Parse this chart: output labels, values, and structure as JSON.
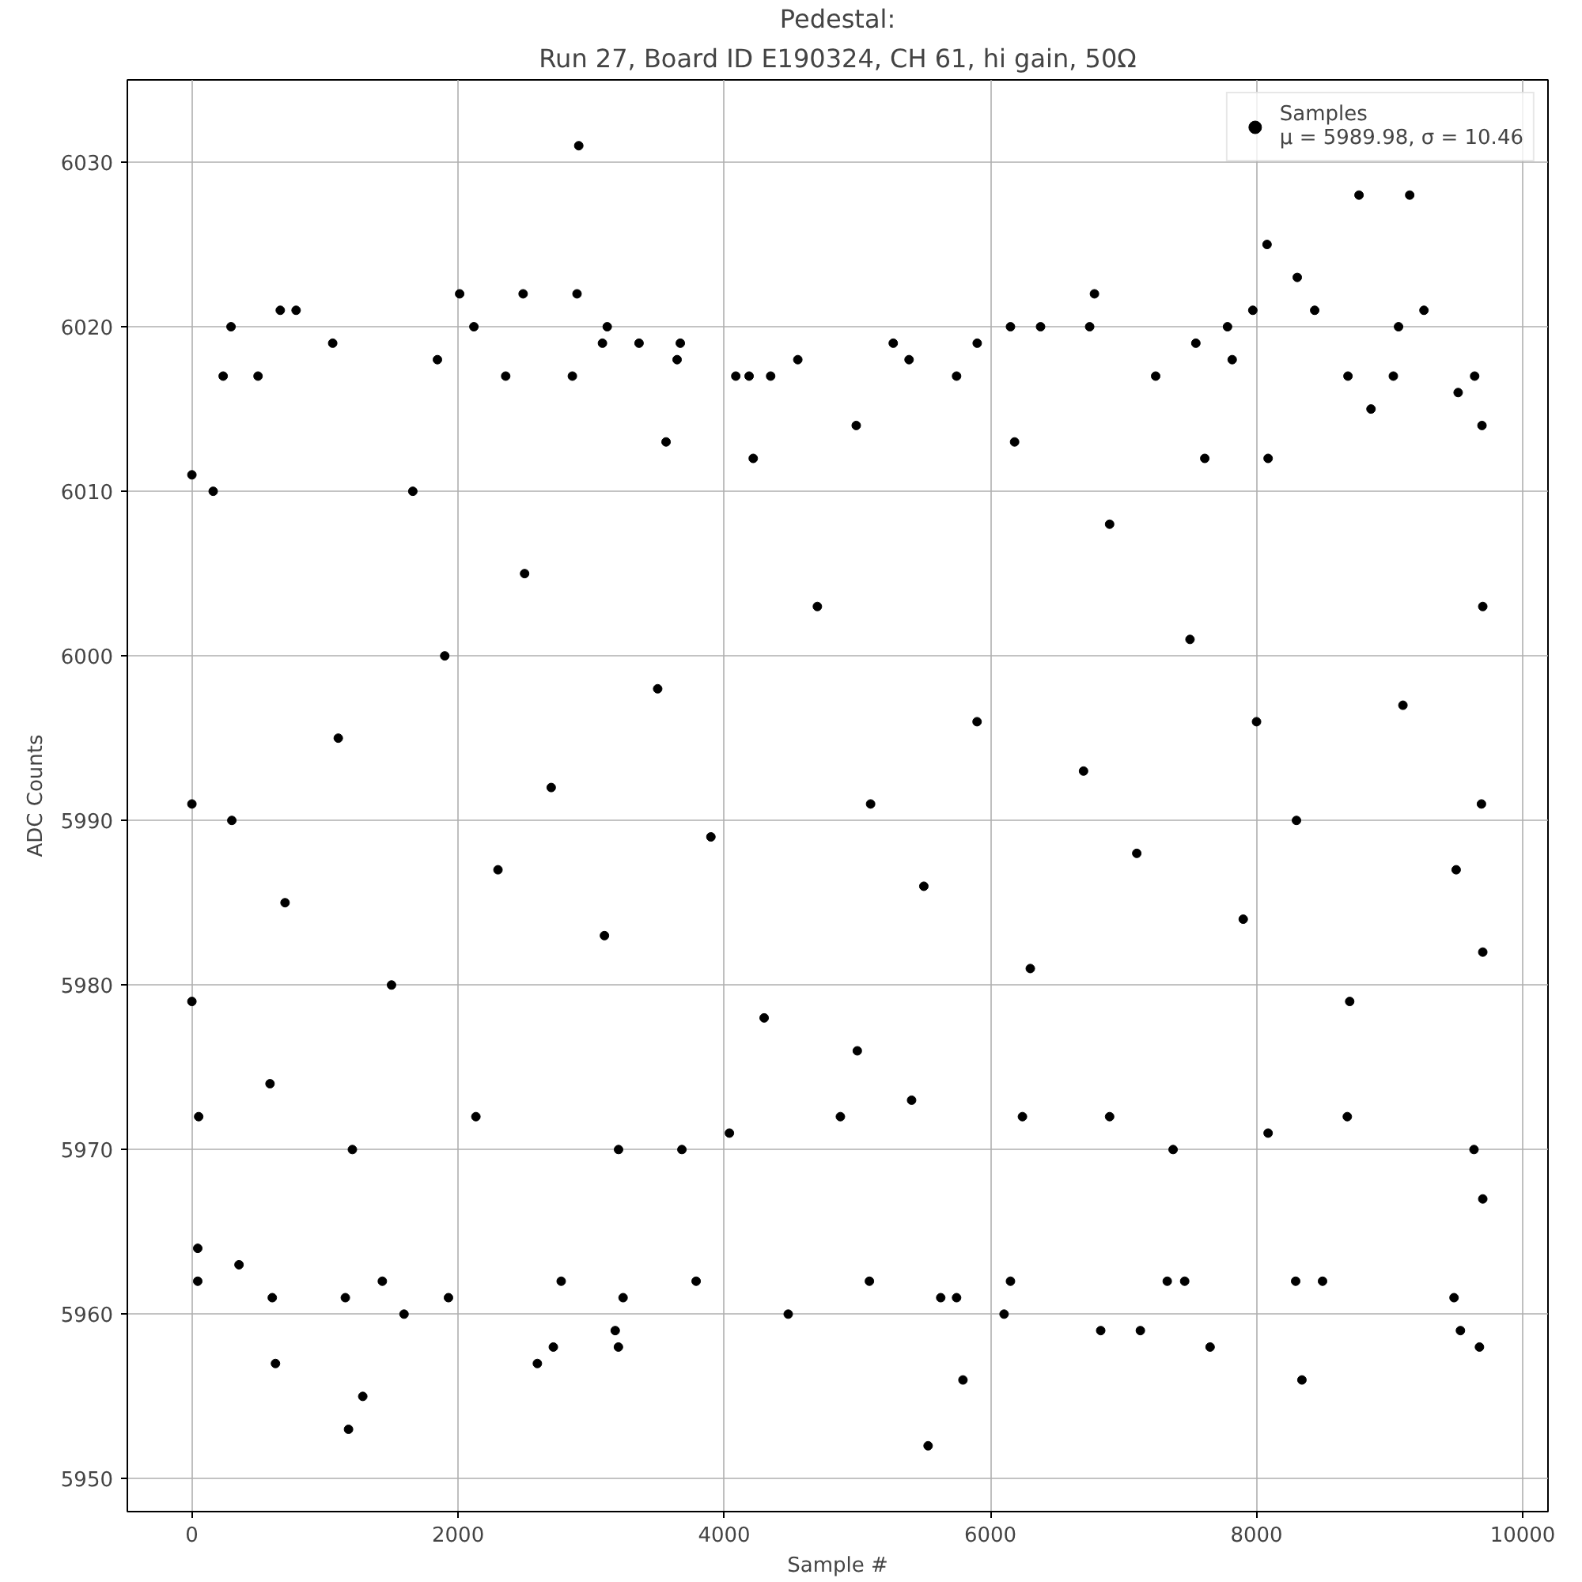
{
  "chart_data": {
    "type": "scatter",
    "title": "Pedestal:",
    "subtitle": "Run 27, Board ID E190324, CH 61, hi gain, 50Ω",
    "xlabel": "Sample #",
    "ylabel": "ADC Counts",
    "xlim": [
      -485,
      10190
    ],
    "ylim": [
      5948,
      6035
    ],
    "xticks": [
      0,
      2000,
      4000,
      6000,
      8000,
      10000
    ],
    "yticks": [
      5950,
      5960,
      5970,
      5980,
      5990,
      6000,
      6010,
      6020,
      6030
    ],
    "grid": true,
    "legend": "top right",
    "marker": "circle",
    "series": [
      {
        "name": "Samples\nμ = 5989.98, σ = 10.46",
        "color": "#000000",
        "x": [
          294,
          664,
          783,
          1058,
          235,
          497,
          2012,
          2119,
          2489,
          2907,
          2894,
          3121,
          3085,
          3360,
          3670,
          3646,
          1845,
          4553,
          4087,
          4187,
          2358,
          2859,
          8770,
          9151,
          8079,
          8306,
          8437,
          7972,
          9258,
          9067,
          7782,
          6782,
          6746,
          6151,
          6377,
          5270,
          5901,
          7544,
          9639,
          8687,
          9028,
          7242,
          5746,
          7817,
          5389,
          628,
          1177,
          1284,
          1594,
          2596,
          2716,
          3181,
          3205,
          4481,
          604,
          1153,
          1928,
          3240,
          44,
          44,
          354,
          1431,
          2775,
          3789,
          5532,
          5794,
          8341,
          6103,
          6829,
          7127,
          7651,
          9532,
          9675,
          9484,
          5091,
          5627,
          5746,
          7329,
          7460,
          8294,
          8496,
          6151,
          0,
          160,
          1660,
          3563,
          4218,
          4349,
          4992,
          6182,
          6896,
          7611,
          8087,
          8860,
          9515,
          9694,
          51,
          587,
          1206,
          2134,
          3206,
          3682,
          4039,
          4873,
          5408,
          6241,
          6896,
          7373,
          8087,
          8682,
          9634,
          9700,
          300,
          700,
          1100,
          1500,
          1900,
          2300,
          2700,
          3100,
          3500,
          3900,
          4300,
          4700,
          5100,
          5500,
          5900,
          6300,
          6700,
          7100,
          7500,
          7900,
          8300,
          8700,
          9100,
          9500,
          9690,
          0,
          0,
          9700,
          9700,
          5000,
          2500,
          8000
        ],
        "values": [
          6020,
          6021,
          6021,
          6019,
          6017,
          6017,
          6022,
          6020,
          6022,
          6031,
          6022,
          6020,
          6019,
          6019,
          6019,
          6018,
          6018,
          6018,
          6017,
          6017,
          6017,
          6017,
          6028,
          6028,
          6025,
          6023,
          6021,
          6021,
          6021,
          6020,
          6020,
          6022,
          6020,
          6020,
          6020,
          6019,
          6019,
          6019,
          6017,
          6017,
          6017,
          6017,
          6017,
          6018,
          6018,
          5957,
          5953,
          5955,
          5960,
          5957,
          5958,
          5959,
          5958,
          5960,
          5961,
          5961,
          5961,
          5961,
          5962,
          5964,
          5963,
          5962,
          5962,
          5962,
          5952,
          5956,
          5956,
          5960,
          5959,
          5959,
          5958,
          5959,
          5958,
          5961,
          5962,
          5961,
          5961,
          5962,
          5962,
          5962,
          5962,
          5962,
          6011,
          6010,
          6010,
          6013,
          6012,
          6017,
          6014,
          6013,
          6008,
          6012,
          6012,
          6015,
          6016,
          6014,
          5972,
          5974,
          5970,
          5972,
          5970,
          5970,
          5971,
          5972,
          5973,
          5972,
          5972,
          5970,
          5971,
          5972,
          5970,
          5967,
          5990,
          5985,
          5995,
          5980,
          6000,
          5987,
          5992,
          5983,
          5998,
          5989,
          5978,
          6003,
          5991,
          5986,
          5996,
          5981,
          5993,
          5988,
          6001,
          5984,
          5990,
          5979,
          5997,
          5987,
          5991,
          5991,
          5979,
          5982,
          6003,
          5976,
          6005,
          5996
        ]
      }
    ]
  }
}
